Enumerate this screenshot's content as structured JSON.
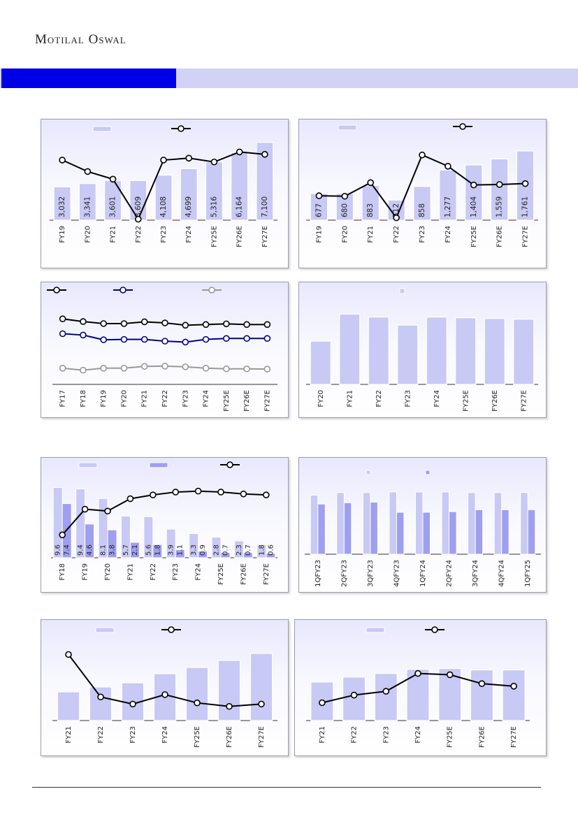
{
  "header": {
    "brand": "Motilal Oswal"
  },
  "colors": {
    "bar": "#c9c9f5",
    "bar_dark": "#9f9ff0",
    "line": "#000000",
    "line_navy": "#00008b",
    "line_grey": "#999999",
    "band_dark": "#0000e6",
    "band_light": "#d2d2f7"
  },
  "chart_data": [
    {
      "type": "bar",
      "categories": [
        "FY19",
        "FY20",
        "FY21",
        "FY22",
        "FY23",
        "FY24",
        "FY25E",
        "FY26E",
        "FY27E"
      ],
      "values": [
        3032,
        3341,
        3601,
        3609,
        4108,
        4699,
        5316,
        6164,
        7100
      ],
      "labels": [
        "3,032",
        "3,341",
        "3,601",
        "3,609",
        "4,108",
        "4,699",
        "5,316",
        "6,164",
        "7,100"
      ],
      "line_values": [
        12.6,
        10.2,
        8.6,
        0.2,
        12.6,
        13.0,
        12.2,
        14.3,
        13.8
      ],
      "ylim": [
        0,
        7400
      ],
      "line_ylim": [
        0,
        17
      ]
    },
    {
      "type": "bar",
      "categories": [
        "FY19",
        "FY20",
        "FY21",
        "FY22",
        "FY23",
        "FY24",
        "FY25E",
        "FY26E",
        "FY27E"
      ],
      "values": [
        677,
        680,
        883,
        512,
        858,
        1277,
        1404,
        1559,
        1761
      ],
      "labels": [
        "677",
        "680",
        "883",
        "512",
        "858",
        "1,277",
        "1,404",
        "1,559",
        "1,761"
      ],
      "line_values": [
        2,
        1,
        30,
        -45,
        89,
        65,
        25,
        26,
        28
      ],
      "ylim": [
        0,
        1850
      ],
      "line_ylim": [
        -50,
        105
      ]
    },
    {
      "type": "line",
      "categories": [
        "FY17",
        "FY18",
        "FY19",
        "FY20",
        "FY21",
        "FY22",
        "FY23",
        "FY24",
        "FY25E",
        "FY26E",
        "FY27E"
      ],
      "series": [
        {
          "values": [
            58.5,
            56.5,
            55.0,
            55.0,
            56.3,
            55.5,
            53.8,
            54.3,
            54.8,
            54.3,
            54.3
          ]
        },
        {
          "values": [
            47.5,
            46.5,
            43.0,
            43.3,
            43.3,
            42.0,
            41.3,
            43.3,
            44.0,
            44.0,
            44.0
          ]
        },
        {
          "values": [
            22.0,
            20.5,
            22.0,
            22.0,
            23.3,
            23.5,
            23.0,
            22.0,
            21.5,
            21.5,
            21.3
          ]
        }
      ],
      "ylim": [
        10,
        70
      ]
    },
    {
      "type": "bar",
      "categories": [
        "FY20",
        "FY21",
        "FY22",
        "FY23",
        "FY24",
        "FY25E",
        "FY26E",
        "FY27E"
      ],
      "values": [
        59,
        96,
        92,
        81,
        92,
        91,
        90,
        89
      ],
      "ylim": [
        0,
        105
      ]
    },
    {
      "type": "bar",
      "categories": [
        "FY18",
        "FY19",
        "FY20",
        "FY21",
        "FY22",
        "FY23",
        "FY24",
        "FY25E",
        "FY26E",
        "FY27E"
      ],
      "series": [
        {
          "values": [
            9.6,
            9.4,
            8.1,
            5.7,
            5.6,
            3.9,
            3.3,
            2.8,
            2.3,
            1.8
          ],
          "labels": [
            "9.6",
            "9.4",
            "8.1",
            "5.7",
            "5.6",
            "3.9",
            "3.3",
            "2.8",
            "2.3",
            "1.8"
          ]
        },
        {
          "values": [
            7.4,
            4.6,
            3.8,
            2.1,
            1.8,
            1.1,
            0.9,
            0.7,
            0.7,
            0.6
          ],
          "labels": [
            "7.4",
            "4.6",
            "3.8",
            "2.1",
            "1.8",
            "1.1",
            "0.9",
            "0.7",
            "0.7",
            "0.6"
          ]
        }
      ],
      "line_values": [
        24,
        51,
        49,
        62,
        66,
        69,
        70,
        69,
        67,
        66
      ],
      "ylim": [
        0,
        10.8
      ],
      "line_ylim": [
        0,
        83
      ]
    },
    {
      "type": "bar",
      "categories": [
        "1QFY23",
        "2QFY23",
        "3QFY23",
        "4QFY23",
        "1QFY24",
        "2QFY24",
        "3QFY24",
        "4QFY24",
        "1QFY25"
      ],
      "series": [
        {
          "values": [
            93,
            97,
            97,
            98,
            98,
            98,
            97,
            97,
            97
          ]
        },
        {
          "values": [
            79,
            81,
            82,
            66,
            66,
            67,
            70,
            70,
            70
          ]
        }
      ],
      "ylim": [
        0,
        110
      ]
    },
    {
      "type": "bar",
      "categories": [
        "FY21",
        "FY22",
        "FY23",
        "FY24",
        "FY25E",
        "FY26E",
        "FY27E"
      ],
      "values": [
        41,
        48,
        54,
        67,
        76,
        86,
        96
      ],
      "line_values": [
        28,
        10,
        7,
        11,
        7.5,
        6,
        7
      ],
      "ylim": [
        0,
        108
      ],
      "line_ylim": [
        0,
        32
      ]
    },
    {
      "type": "bar",
      "categories": [
        "FY21",
        "FY22",
        "FY23",
        "FY24",
        "FY25E",
        "FY26E",
        "FY27E"
      ],
      "values": [
        54,
        61,
        66,
        72,
        73,
        71,
        71
      ],
      "line_values": [
        7,
        10,
        11.5,
        18.5,
        18,
        14.5,
        13.5
      ],
      "ylim": [
        0,
        100
      ],
      "line_ylim": [
        0,
        28
      ]
    }
  ]
}
